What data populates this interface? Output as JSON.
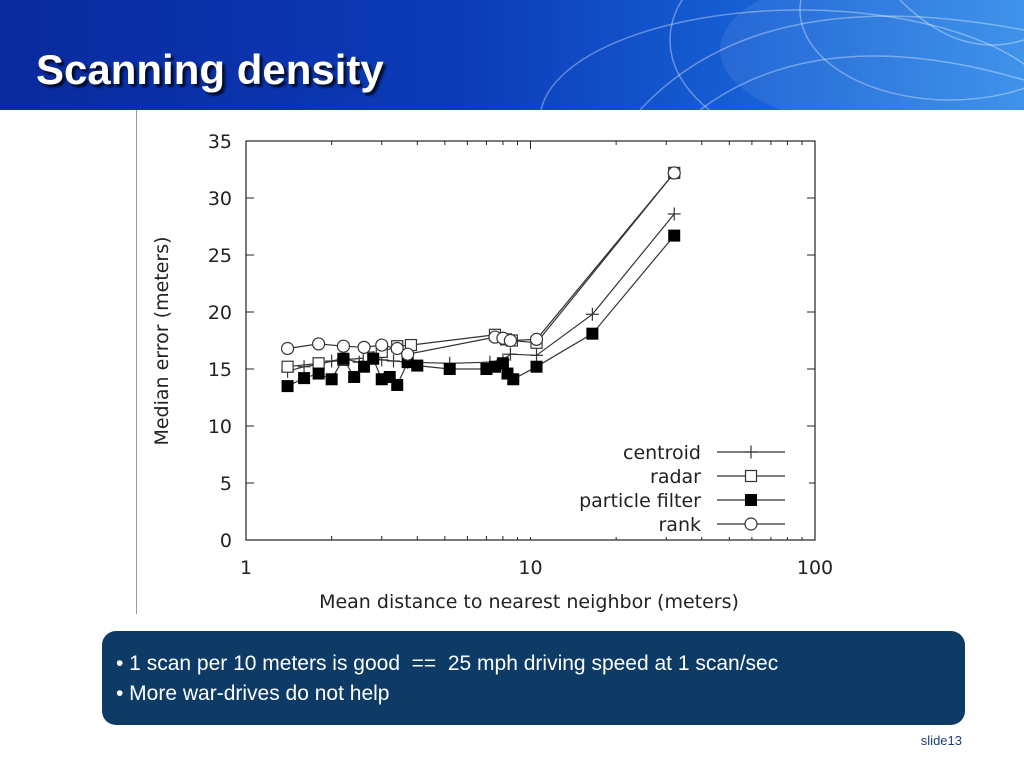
{
  "slide": {
    "title": "Scanning density",
    "slide_number": "slide13"
  },
  "callout": {
    "lines": [
      "• 1 scan per 10 meters is good  ==  25 mph driving speed at 1 scan/sec",
      "• More war-drives do not help"
    ]
  },
  "colors": {
    "header_blue": "#0b3bb8",
    "callout_bg": "#0d3b66",
    "series_stroke": "#333333"
  },
  "chart_data": {
    "type": "line",
    "title": "",
    "xlabel": "Mean distance to nearest neighbor (meters)",
    "ylabel": "Median error (meters)",
    "xscale": "log",
    "xlim": [
      1,
      100
    ],
    "ylim": [
      0,
      35
    ],
    "xticks": [
      1,
      10,
      100
    ],
    "yticks": [
      0,
      5,
      10,
      15,
      20,
      25,
      30,
      35
    ],
    "grid": false,
    "legend_position": "bottom-right",
    "series": [
      {
        "name": "centroid",
        "marker": "plus",
        "points": [
          [
            1.4,
            14.8
          ],
          [
            1.6,
            15.2
          ],
          [
            1.8,
            15.4
          ],
          [
            2.0,
            15.7
          ],
          [
            2.2,
            15.9
          ],
          [
            2.5,
            15.6
          ],
          [
            2.8,
            16.0
          ],
          [
            3.0,
            15.8
          ],
          [
            3.3,
            15.7
          ],
          [
            3.7,
            15.6
          ],
          [
            5.2,
            15.5
          ],
          [
            7.2,
            15.6
          ],
          [
            8.0,
            15.8
          ],
          [
            8.5,
            16.3
          ],
          [
            10.5,
            16.2
          ],
          [
            16.5,
            19.8
          ],
          [
            32,
            28.6
          ]
        ]
      },
      {
        "name": "radar",
        "marker": "open-square",
        "points": [
          [
            1.4,
            15.2
          ],
          [
            1.8,
            15.5
          ],
          [
            2.2,
            15.8
          ],
          [
            2.7,
            16.0
          ],
          [
            3.0,
            16.5
          ],
          [
            3.4,
            17.0
          ],
          [
            3.8,
            17.1
          ],
          [
            7.5,
            18.0
          ],
          [
            8.2,
            17.6
          ],
          [
            8.6,
            17.5
          ],
          [
            10.5,
            17.3
          ],
          [
            32,
            32.2
          ]
        ]
      },
      {
        "name": "particle filter",
        "marker": "filled-square",
        "points": [
          [
            1.4,
            13.5
          ],
          [
            1.6,
            14.2
          ],
          [
            1.8,
            14.6
          ],
          [
            2.0,
            14.1
          ],
          [
            2.2,
            15.9
          ],
          [
            2.4,
            14.3
          ],
          [
            2.6,
            15.2
          ],
          [
            2.8,
            15.9
          ],
          [
            3.0,
            14.1
          ],
          [
            3.2,
            14.3
          ],
          [
            3.4,
            13.6
          ],
          [
            3.7,
            15.6
          ],
          [
            4.0,
            15.3
          ],
          [
            5.2,
            15.0
          ],
          [
            7.0,
            15.0
          ],
          [
            7.5,
            15.2
          ],
          [
            8.0,
            15.5
          ],
          [
            8.3,
            14.6
          ],
          [
            8.7,
            14.1
          ],
          [
            10.5,
            15.2
          ],
          [
            16.5,
            18.1
          ],
          [
            32,
            26.7
          ]
        ]
      },
      {
        "name": "rank",
        "marker": "open-circle",
        "points": [
          [
            1.4,
            16.8
          ],
          [
            1.8,
            17.2
          ],
          [
            2.2,
            17.0
          ],
          [
            2.6,
            16.9
          ],
          [
            3.0,
            17.1
          ],
          [
            3.4,
            16.8
          ],
          [
            3.7,
            16.3
          ],
          [
            7.5,
            17.8
          ],
          [
            8.0,
            17.7
          ],
          [
            8.5,
            17.5
          ],
          [
            10.5,
            17.6
          ],
          [
            32,
            32.2
          ]
        ]
      }
    ]
  }
}
